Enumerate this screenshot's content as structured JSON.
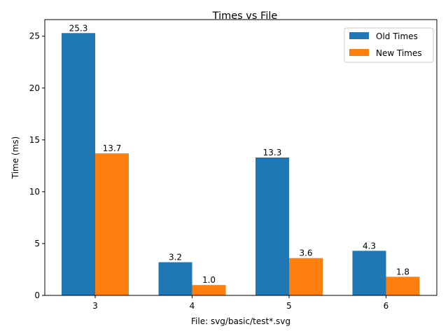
{
  "chart_data": {
    "type": "bar",
    "title": "Times vs File",
    "xlabel": "File: svg/basic/test*.svg",
    "ylabel": "Time (ms)",
    "categories": [
      "3",
      "4",
      "5",
      "6"
    ],
    "series": [
      {
        "name": "Old Times",
        "color": "#1f77b4",
        "values": [
          25.3,
          3.2,
          13.3,
          4.3
        ],
        "labels": [
          "25.3",
          "3.2",
          "13.3",
          "4.3"
        ]
      },
      {
        "name": "New Times",
        "color": "#ff7f0e",
        "values": [
          13.7,
          1.0,
          3.6,
          1.8
        ],
        "labels": [
          "13.7",
          "1.0",
          "3.6",
          "1.8"
        ]
      }
    ],
    "ylim": [
      0,
      26.6
    ],
    "yticks": [
      "0",
      "5",
      "10",
      "15",
      "20",
      "25"
    ],
    "grid": false,
    "legend_position": "top-right"
  }
}
